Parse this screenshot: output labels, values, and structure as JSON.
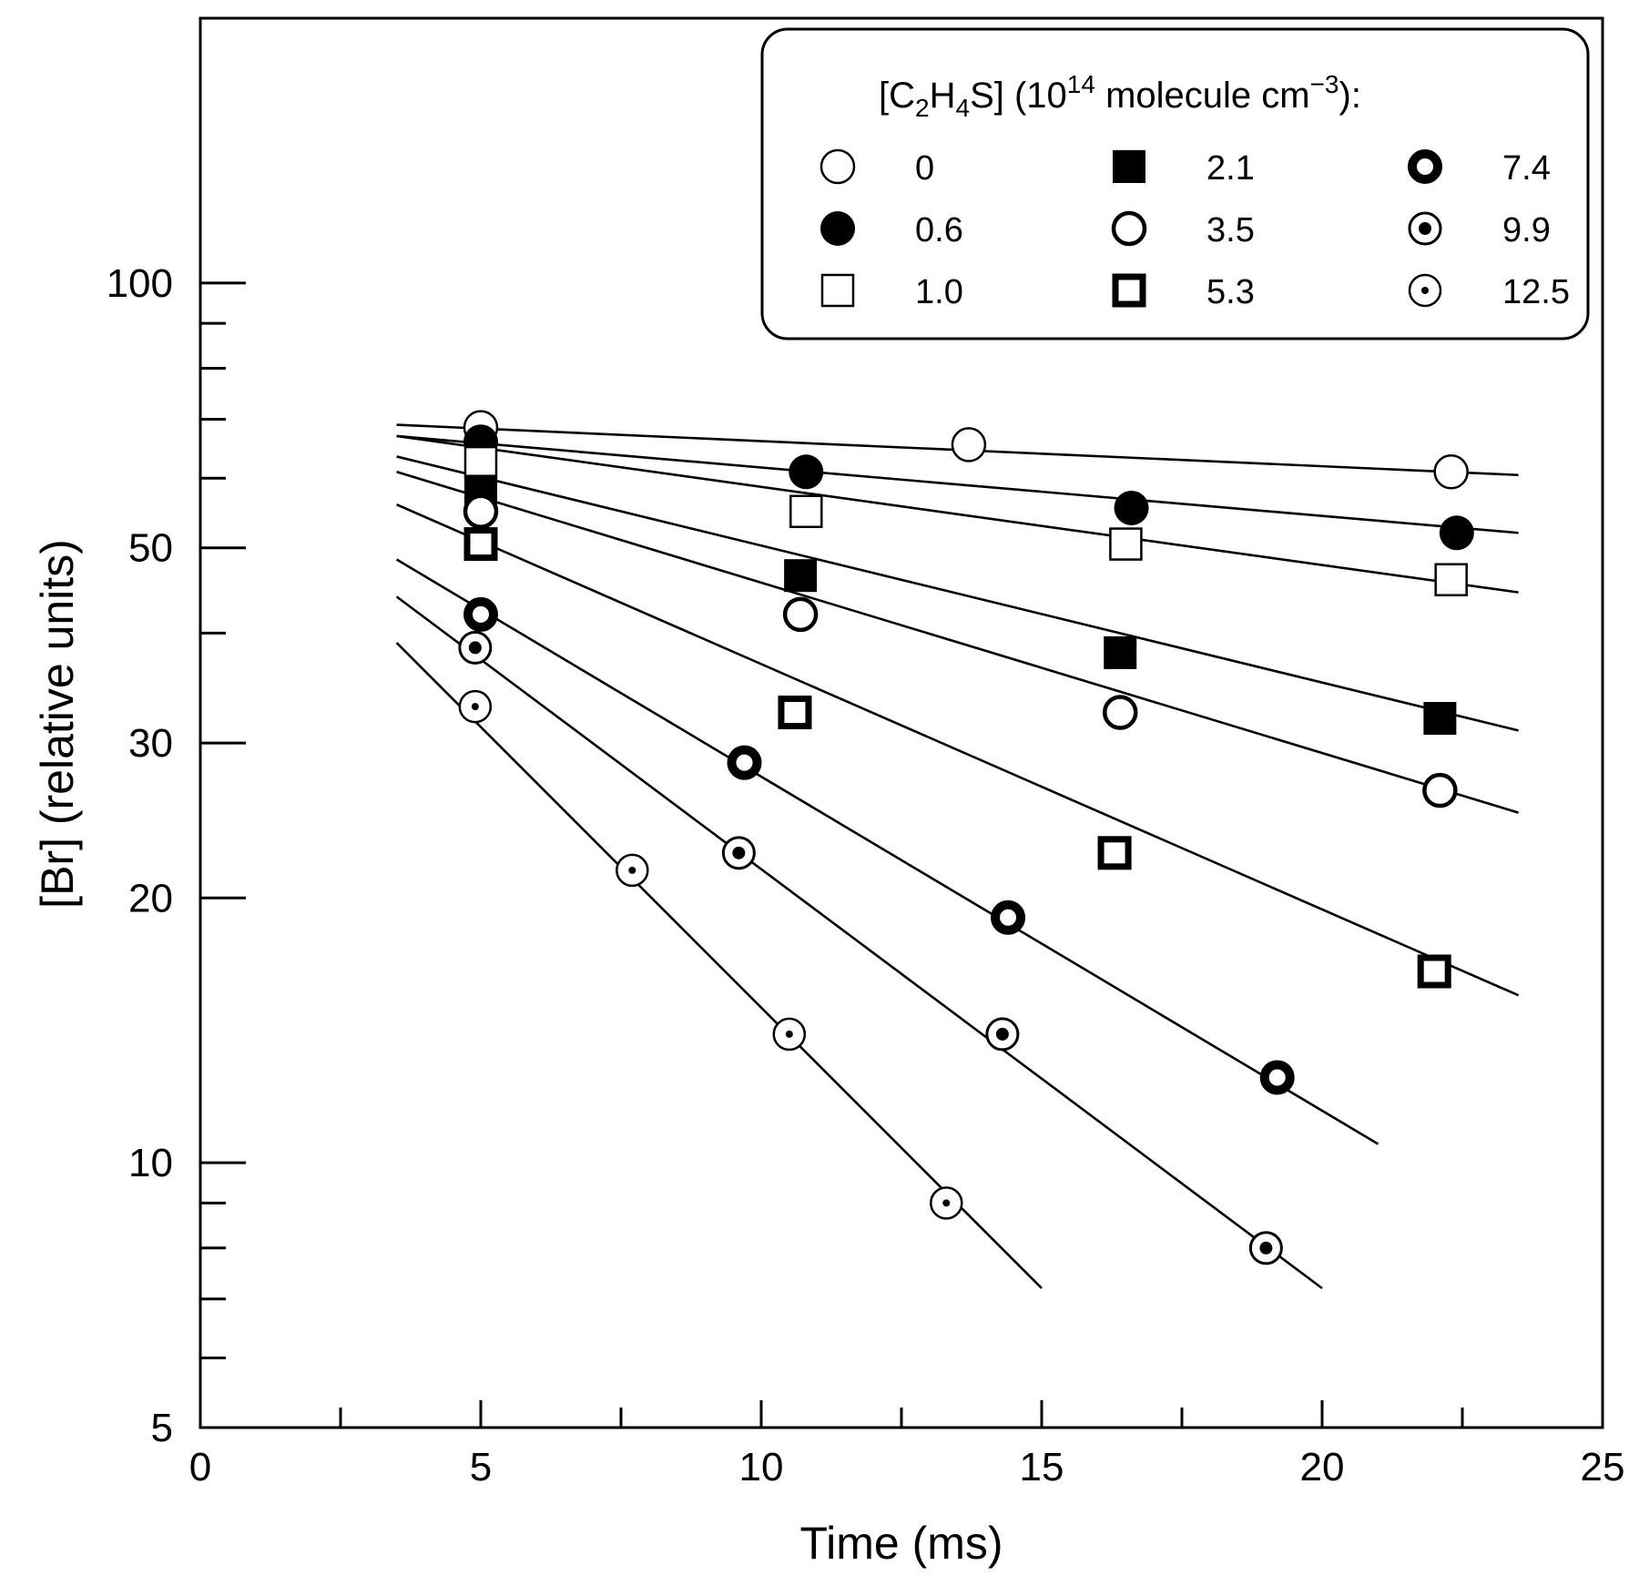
{
  "chart_data": {
    "type": "scatter",
    "title": "",
    "xlabel": "Time (ms)",
    "ylabel": "[Br] (relative units)",
    "xlim": [
      0,
      25
    ],
    "ylim": [
      5,
      200
    ],
    "yscale": "log",
    "x_ticks": [
      0,
      5,
      10,
      15,
      20,
      25
    ],
    "x_tick_labels": [
      "0",
      "5",
      "10",
      "15",
      "20",
      "25"
    ],
    "x_minor_ticks": [
      2.5,
      7.5,
      12.5,
      17.5,
      22.5
    ],
    "y_ticks": [
      5,
      10,
      20,
      30,
      50,
      100
    ],
    "y_tick_labels": [
      "5",
      "10",
      "20",
      "30",
      "50",
      "100"
    ],
    "y_minor_ticks": [
      6,
      7,
      8,
      9,
      40,
      60,
      70,
      80,
      90
    ],
    "grid": false,
    "legend": {
      "placement": "top-right",
      "title_parts": [
        "[C",
        "2",
        "H",
        "4",
        "S] (10",
        "14",
        " molecule cm",
        "−3",
        "):"
      ]
    },
    "series": [
      {
        "name": "0",
        "marker": "open-circle",
        "points": [
          [
            5.0,
            68.5
          ],
          [
            13.7,
            65.5
          ],
          [
            22.3,
            61.0
          ]
        ],
        "fit": {
          "x": [
            3.5,
            23.5
          ],
          "y": [
            69.0,
            60.5
          ]
        }
      },
      {
        "name": "0.6",
        "marker": "filled-circle",
        "points": [
          [
            5.0,
            66.0
          ],
          [
            10.8,
            61.0
          ],
          [
            16.6,
            55.5
          ],
          [
            22.4,
            52.0
          ]
        ],
        "fit": {
          "x": [
            3.5,
            23.5
          ],
          "y": [
            67.0,
            52.0
          ]
        }
      },
      {
        "name": "1.0",
        "marker": "open-square",
        "points": [
          [
            5.0,
            62.5
          ],
          [
            10.8,
            55.0
          ],
          [
            16.5,
            50.5
          ],
          [
            22.3,
            46.0
          ]
        ],
        "fit": {
          "x": [
            3.5,
            23.5
          ],
          "y": [
            67.0,
            44.5
          ]
        }
      },
      {
        "name": "2.1",
        "marker": "filled-square",
        "points": [
          [
            5.0,
            58.0
          ],
          [
            10.7,
            46.5
          ],
          [
            16.4,
            38.0
          ],
          [
            22.1,
            32.0
          ]
        ],
        "fit": {
          "x": [
            3.5,
            23.5
          ],
          "y": [
            63.5,
            31.0
          ]
        }
      },
      {
        "name": "3.5",
        "marker": "thick-circle",
        "points": [
          [
            5.0,
            55.0
          ],
          [
            10.7,
            42.0
          ],
          [
            16.4,
            32.5
          ],
          [
            22.1,
            26.5
          ]
        ],
        "fit": {
          "x": [
            3.5,
            23.5
          ],
          "y": [
            61.0,
            25.0
          ]
        }
      },
      {
        "name": "5.3",
        "marker": "thick-square",
        "points": [
          [
            5.0,
            50.5
          ],
          [
            10.6,
            32.5
          ],
          [
            16.3,
            22.5
          ],
          [
            22.0,
            16.5
          ]
        ],
        "fit": {
          "x": [
            3.5,
            23.5
          ],
          "y": [
            56.0,
            15.5
          ]
        }
      },
      {
        "name": "7.4",
        "marker": "bold-ring",
        "points": [
          [
            5.0,
            42.0
          ],
          [
            9.7,
            28.5
          ],
          [
            14.4,
            19.0
          ],
          [
            19.2,
            12.5
          ]
        ],
        "fit": {
          "x": [
            3.5,
            21.0
          ],
          "y": [
            48.5,
            10.5
          ]
        }
      },
      {
        "name": "9.9",
        "marker": "ring-dot",
        "points": [
          [
            4.9,
            38.5
          ],
          [
            9.6,
            22.5
          ],
          [
            14.3,
            14.0
          ],
          [
            19.0,
            8.0
          ]
        ],
        "fit": {
          "x": [
            3.5,
            20.0
          ],
          "y": [
            44.0,
            7.2
          ]
        }
      },
      {
        "name": "12.5",
        "marker": "circle-dot",
        "points": [
          [
            4.9,
            33.0
          ],
          [
            7.7,
            21.5
          ],
          [
            10.5,
            14.0
          ],
          [
            13.3,
            9.0
          ]
        ],
        "fit": {
          "x": [
            3.5,
            15.0
          ],
          "y": [
            39.0,
            7.2
          ]
        }
      }
    ]
  }
}
